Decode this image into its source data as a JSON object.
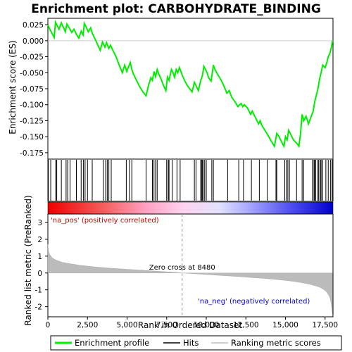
{
  "chart_data": {
    "title": "Enrichment plot: CARBOHYDRATE_BINDING",
    "type": "line",
    "panels": {
      "enrichment": {
        "ylabel": "Enrichment score (ES)",
        "ylim": [
          -0.185,
          0.035
        ],
        "yticks": [
          -0.175,
          -0.15,
          -0.125,
          -0.1,
          -0.075,
          -0.05,
          -0.025,
          0.0,
          0.025
        ],
        "ytick_labels": [
          "-0.175",
          "-0.150",
          "-0.125",
          "-0.100",
          "-0.075",
          "-0.050",
          "-0.025",
          "0.000",
          "0.025"
        ],
        "series": [
          {
            "name": "Enrichment profile",
            "color": "#00ee00",
            "x": [
              0,
              120,
              250,
              400,
              480,
              560,
              700,
              850,
              980,
              1100,
              1200,
              1350,
              1500,
              1650,
              1800,
              1950,
              2100,
              2220,
              2300,
              2420,
              2550,
              2700,
              2800,
              2950,
              3100,
              3300,
              3450,
              3600,
              3700,
              3850,
              3950,
              4100,
              4300,
              4500,
              4700,
              4850,
              4980,
              5100,
              5200,
              5300,
              5400,
              5600,
              5800,
              6000,
              6200,
              6350,
              6500,
              6600,
              6700,
              6800,
              6900,
              7000,
              7150,
              7300,
              7450,
              7550,
              7650,
              7800,
              7900,
              8000,
              8100,
              8200,
              8300,
              8400,
              8500,
              8650,
              8800,
              8950,
              9100,
              9250,
              9350,
              9500,
              9650,
              9750,
              9850,
              9950,
              10050,
              10150,
              10300,
              10450,
              10550,
              10700,
              10900,
              11100,
              11300,
              11450,
              11600,
              11800,
              12000,
              12100,
              12200,
              12300,
              12400,
              12600,
              12800,
              12900,
              13100,
              13300,
              13400,
              13500,
              13700,
              13900,
              14100,
              14300,
              14450,
              14600,
              14750,
              14900,
              15000,
              15100,
              15200,
              15300,
              15500,
              15700,
              15850,
              15950,
              16050,
              16150,
              16300,
              16450,
              16600,
              16750,
              16850,
              16950,
              17050,
              17150,
              17250,
              17350,
              17500,
              17600,
              17700,
              17800,
              17900,
              17970
            ],
            "y": [
              0.025,
              0.018,
              0.012,
              0.005,
              0.029,
              0.025,
              0.018,
              0.028,
              0.021,
              0.014,
              0.026,
              0.02,
              0.013,
              0.018,
              0.01,
              0.004,
              0.015,
              0.009,
              0.027,
              0.021,
              0.014,
              0.02,
              0.012,
              0.004,
              -0.004,
              -0.015,
              -0.002,
              -0.01,
              -0.003,
              -0.012,
              -0.007,
              -0.015,
              -0.025,
              -0.038,
              -0.05,
              -0.038,
              -0.048,
              -0.04,
              -0.034,
              -0.045,
              -0.052,
              -0.062,
              -0.072,
              -0.08,
              -0.086,
              -0.07,
              -0.058,
              -0.062,
              -0.048,
              -0.056,
              -0.045,
              -0.052,
              -0.06,
              -0.07,
              -0.078,
              -0.057,
              -0.062,
              -0.045,
              -0.05,
              -0.057,
              -0.045,
              -0.05,
              -0.042,
              -0.048,
              -0.055,
              -0.063,
              -0.07,
              -0.075,
              -0.08,
              -0.065,
              -0.07,
              -0.078,
              -0.062,
              -0.055,
              -0.04,
              -0.045,
              -0.05,
              -0.058,
              -0.063,
              -0.038,
              -0.045,
              -0.052,
              -0.06,
              -0.07,
              -0.082,
              -0.078,
              -0.088,
              -0.095,
              -0.103,
              -0.1,
              -0.098,
              -0.103,
              -0.1,
              -0.105,
              -0.115,
              -0.11,
              -0.12,
              -0.13,
              -0.125,
              -0.132,
              -0.14,
              -0.148,
              -0.157,
              -0.165,
              -0.145,
              -0.15,
              -0.158,
              -0.165,
              -0.15,
              -0.155,
              -0.14,
              -0.145,
              -0.155,
              -0.16,
              -0.165,
              -0.145,
              -0.115,
              -0.125,
              -0.118,
              -0.13,
              -0.12,
              -0.11,
              -0.095,
              -0.085,
              -0.075,
              -0.06,
              -0.05,
              -0.038,
              -0.042,
              -0.035,
              -0.025,
              -0.02,
              -0.01,
              0.0
            ]
          }
        ]
      },
      "hits": {
        "positions": [
          30,
          180,
          500,
          560,
          850,
          1150,
          1250,
          1400,
          1800,
          2100,
          2250,
          2350,
          2500,
          2800,
          3500,
          3650,
          3750,
          3850,
          4000,
          4950,
          5150,
          5300,
          6200,
          6600,
          6700,
          6800,
          6900,
          7500,
          7600,
          7650,
          7850,
          8150,
          8350,
          9250,
          9350,
          9650,
          9700,
          9750,
          9800,
          9900,
          10000,
          10350,
          10450,
          11350,
          12050,
          12350,
          12850,
          13350,
          13850,
          14400,
          14450,
          14950,
          15050,
          15150,
          15250,
          15700,
          16050,
          16150,
          16700,
          16800,
          16850,
          16900,
          17050,
          17100,
          17200,
          17250,
          17350,
          17550,
          17700,
          17850,
          17950
        ]
      },
      "ranked_metric": {
        "ylabel": "Ranked list metric (PreRanked)",
        "ylim": [
          -2.6,
          3.5
        ],
        "yticks": [
          -2,
          -1,
          0,
          1,
          2,
          3
        ],
        "ytick_labels": [
          "-2",
          "-1",
          "0",
          "1",
          "2",
          "3"
        ],
        "xlabel": "Rank in Ordered Dataset",
        "xlim": [
          0,
          18000
        ],
        "xticks": [
          0,
          2500,
          5000,
          7500,
          10000,
          12500,
          15000,
          17500
        ],
        "xtick_labels": [
          "0",
          "2,500",
          "5,000",
          "7,500",
          "10,000",
          "12,500",
          "15,000",
          "17,500"
        ],
        "curve_x": [
          0,
          20,
          60,
          120,
          200,
          300,
          450,
          650,
          900,
          1200,
          1600,
          2000,
          2500,
          3000,
          3500,
          4000,
          5000,
          6000,
          7000,
          8000,
          8480,
          9000,
          10000,
          11000,
          12000,
          13000,
          14000,
          15000,
          15500,
          16000,
          16500,
          16900,
          17200,
          17400,
          17550,
          17650,
          17750,
          17830,
          17880,
          17930,
          17970
        ],
        "curve_y": [
          1.7,
          1.45,
          1.25,
          1.1,
          0.98,
          0.88,
          0.8,
          0.72,
          0.64,
          0.58,
          0.52,
          0.46,
          0.41,
          0.36,
          0.32,
          0.28,
          0.22,
          0.16,
          0.1,
          0.04,
          0.0,
          -0.03,
          -0.09,
          -0.15,
          -0.21,
          -0.28,
          -0.35,
          -0.44,
          -0.5,
          -0.57,
          -0.66,
          -0.76,
          -0.86,
          -0.97,
          -1.08,
          -1.2,
          -1.35,
          -1.55,
          -1.8,
          -2.1,
          -2.45
        ],
        "zero_cross_label": "Zero cross at 8480",
        "zero_cross_x": 8480,
        "pos_label": "'na_pos' (positively correlated)",
        "neg_label": "'na_neg' (negatively correlated)"
      }
    },
    "legend": {
      "placement": "bottom",
      "items": [
        {
          "label": "Enrichment profile",
          "color": "#00ee00",
          "kind": "thick-line"
        },
        {
          "label": "Hits",
          "color": "#000000",
          "kind": "line"
        },
        {
          "label": "Ranking metric scores",
          "color": "#bbbbbb",
          "kind": "line"
        }
      ]
    },
    "colors": {
      "profile": "#00ee00",
      "hit": "#000000",
      "metric_fill": "#bbbbbb",
      "pos_text": "#cc0000",
      "neg_text": "#0000cc",
      "zero_line": "#999999"
    }
  }
}
